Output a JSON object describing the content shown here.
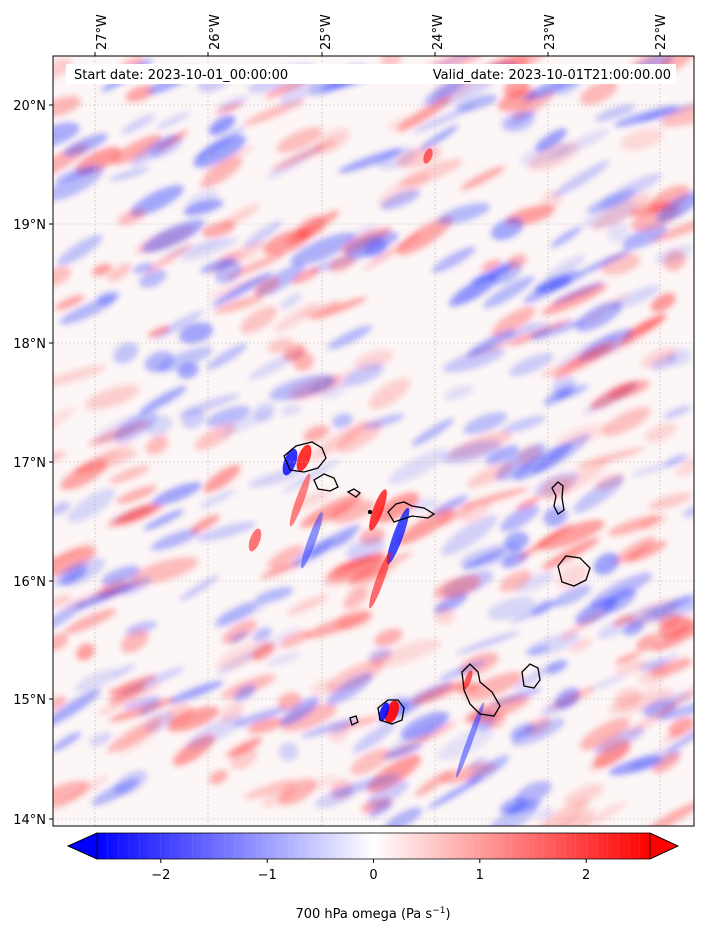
{
  "header": {
    "start_date": "Start date: 2023-10-01_00:00:00",
    "valid_date": "Valid_date: 2023-10-01T21:00:00.00"
  },
  "axes": {
    "lon_labels": [
      "27°W",
      "26°W",
      "25°W",
      "24°W",
      "23°W",
      "22°W"
    ],
    "lat_labels": [
      "20°N",
      "19°N",
      "18°N",
      "17°N",
      "16°N",
      "15°N",
      "14°N"
    ]
  },
  "colorbar": {
    "label_main": "700 hPa omega (Pa s",
    "label_exp": "−1",
    "label_close": ")",
    "ticks": [
      "−2",
      "−1",
      "0",
      "1",
      "2"
    ],
    "vmin": -2.6,
    "vmax": 2.6,
    "low_color": "#0000ff",
    "mid_color": "#ffffff",
    "high_color": "#ff0000"
  },
  "colors": {
    "coastline": "#000000",
    "grid": "#bbbbbb"
  }
}
